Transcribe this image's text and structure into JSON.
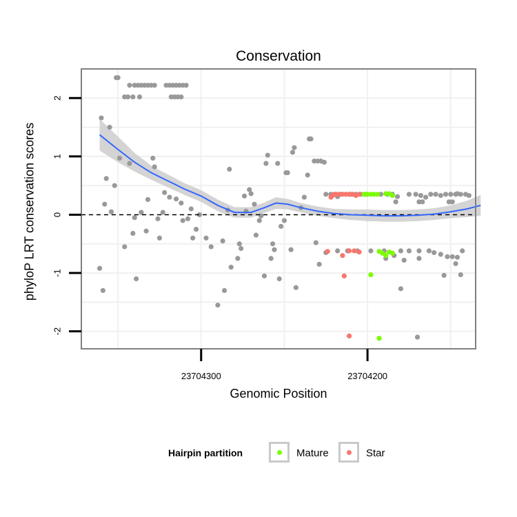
{
  "colors": {
    "other": "#999999",
    "mature": "#7cfc00",
    "star": "#f8766d",
    "smooth": "#3366ff",
    "ribbon": "#cccccc"
  },
  "legend": {
    "title": "Hairpin partition",
    "items": [
      {
        "label": "Mature",
        "color": "#7cfc00"
      },
      {
        "label": "Star",
        "color": "#f8766d"
      }
    ]
  },
  "chart_data": {
    "type": "scatter",
    "title": "Conservation",
    "xlabel": "Genomic Position",
    "ylabel": "phyloP LRT conservation scores",
    "xlim": [
      23704372,
      23704135
    ],
    "ylim": [
      -2.3,
      2.5
    ],
    "x_ticks": [
      23704300,
      23704200
    ],
    "x_tick_labels": [
      "23704300",
      "23704200"
    ],
    "y_ticks": [
      -2,
      -1,
      0,
      1,
      2
    ],
    "y_tick_labels": [
      "-2",
      "-1",
      "0",
      "1",
      "2"
    ],
    "reference_line": {
      "y": 0,
      "style": "dashed"
    },
    "series": [
      {
        "name": "Other",
        "points": [
          [
            23704360,
            1.66
          ],
          [
            23704355,
            1.5
          ],
          [
            23704352,
            0.5
          ],
          [
            23704354,
            0.05
          ],
          [
            23704358,
            0.18
          ],
          [
            23704357,
            0.62
          ],
          [
            23704349,
            0.97
          ],
          [
            23704361,
            -0.92
          ],
          [
            23704359,
            -1.3
          ],
          [
            23704350,
            2.35
          ],
          [
            23704351,
            2.35
          ],
          [
            23704346,
            2.02
          ],
          [
            23704344,
            2.02
          ],
          [
            23704341,
            2.02
          ],
          [
            23704343,
            2.22
          ],
          [
            23704340,
            2.22
          ],
          [
            23704338,
            2.22
          ],
          [
            23704336,
            2.22
          ],
          [
            23704334,
            2.22
          ],
          [
            23704332,
            2.22
          ],
          [
            23704330,
            2.22
          ],
          [
            23704328,
            2.22
          ],
          [
            23704337,
            2.02
          ],
          [
            23704321,
            2.22
          ],
          [
            23704319,
            2.22
          ],
          [
            23704317,
            2.22
          ],
          [
            23704315,
            2.22
          ],
          [
            23704313,
            2.22
          ],
          [
            23704311,
            2.22
          ],
          [
            23704309,
            2.22
          ],
          [
            23704318,
            2.02
          ],
          [
            23704316,
            2.02
          ],
          [
            23704314,
            2.02
          ],
          [
            23704312,
            2.02
          ],
          [
            23704346,
            -0.55
          ],
          [
            23704343,
            0.88
          ],
          [
            23704341,
            -0.32
          ],
          [
            23704340,
            -0.05
          ],
          [
            23704339,
            -1.1
          ],
          [
            23704336,
            0.04
          ],
          [
            23704333,
            -0.28
          ],
          [
            23704332,
            0.26
          ],
          [
            23704329,
            0.97
          ],
          [
            23704328,
            0.82
          ],
          [
            23704326,
            -0.07
          ],
          [
            23704325,
            -0.4
          ],
          [
            23704323,
            0.04
          ],
          [
            23704322,
            0.38
          ],
          [
            23704319,
            0.3
          ],
          [
            23704315,
            0.27
          ],
          [
            23704312,
            0.2
          ],
          [
            23704311,
            -0.1
          ],
          [
            23704308,
            -0.07
          ],
          [
            23704306,
            0.1
          ],
          [
            23704305,
            -0.4
          ],
          [
            23704303,
            -0.25
          ],
          [
            23704301,
            0.0
          ],
          [
            23704297,
            -0.4
          ],
          [
            23704294,
            -0.55
          ],
          [
            23704290,
            -1.55
          ],
          [
            23704287,
            -0.45
          ],
          [
            23704286,
            -1.3
          ],
          [
            23704284,
            0.08
          ],
          [
            23704283,
            0.78
          ],
          [
            23704282,
            -0.9
          ],
          [
            23704278,
            -0.75
          ],
          [
            23704277,
            -0.5
          ],
          [
            23704276,
            -0.58
          ],
          [
            23704274,
            0.32
          ],
          [
            23704273,
            0.06
          ],
          [
            23704271,
            0.43
          ],
          [
            23704270,
            0.36
          ],
          [
            23704268,
            0.18
          ],
          [
            23704267,
            -0.35
          ],
          [
            23704265,
            -0.1
          ],
          [
            23704264,
            -0.02
          ],
          [
            23704262,
            -1.05
          ],
          [
            23704261,
            0.88
          ],
          [
            23704260,
            1.02
          ],
          [
            23704258,
            -0.75
          ],
          [
            23704257,
            -0.5
          ],
          [
            23704256,
            -0.6
          ],
          [
            23704254,
            0.88
          ],
          [
            23704253,
            -1.1
          ],
          [
            23704252,
            -0.2
          ],
          [
            23704250,
            -0.1
          ],
          [
            23704249,
            0.72
          ],
          [
            23704248,
            0.72
          ],
          [
            23704246,
            -0.6
          ],
          [
            23704245,
            1.07
          ],
          [
            23704244,
            1.15
          ],
          [
            23704243,
            -1.25
          ],
          [
            23704240,
            0.12
          ],
          [
            23704238,
            0.3
          ],
          [
            23704236,
            0.68
          ],
          [
            23704235,
            1.3
          ],
          [
            23704234,
            1.3
          ],
          [
            23704232,
            0.92
          ],
          [
            23704230,
            0.92
          ],
          [
            23704228,
            0.92
          ],
          [
            23704226,
            0.9
          ],
          [
            23704231,
            -0.48
          ],
          [
            23704229,
            -0.85
          ],
          [
            23704225,
            -0.65
          ],
          [
            23704225,
            0.35
          ],
          [
            23704222,
            0.35
          ],
          [
            23704219,
            0.35
          ],
          [
            23704216,
            0.35
          ],
          [
            23704213,
            0.35
          ],
          [
            23704210,
            0.35
          ],
          [
            23704207,
            0.35
          ],
          [
            23704204,
            0.35
          ],
          [
            23704201,
            0.35
          ],
          [
            23704221,
            0.33
          ],
          [
            23704218,
            0.31
          ],
          [
            23704192,
            0.35
          ],
          [
            23704188,
            0.35
          ],
          [
            23704185,
            0.33
          ],
          [
            23704182,
            0.31
          ],
          [
            23704175,
            0.35
          ],
          [
            23704171,
            0.35
          ],
          [
            23704168,
            0.33
          ],
          [
            23704165,
            0.3
          ],
          [
            23704162,
            0.35
          ],
          [
            23704159,
            0.35
          ],
          [
            23704156,
            0.33
          ],
          [
            23704153,
            0.35
          ],
          [
            23704150,
            0.35
          ],
          [
            23704147,
            0.35
          ],
          [
            23704144,
            0.35
          ],
          [
            23704141,
            0.35
          ],
          [
            23704139,
            0.33
          ],
          [
            23704209,
            0.35
          ],
          [
            23704146,
            0.36
          ],
          [
            23704218,
            -0.62
          ],
          [
            23704212,
            -0.62
          ],
          [
            23704206,
            -0.62
          ],
          [
            23704198,
            -0.62
          ],
          [
            23704190,
            -0.62
          ],
          [
            23704180,
            -0.62
          ],
          [
            23704175,
            -0.62
          ],
          [
            23704169,
            -0.62
          ],
          [
            23704163,
            -0.62
          ],
          [
            23704160,
            -0.65
          ],
          [
            23704156,
            -0.68
          ],
          [
            23704152,
            -0.72
          ],
          [
            23704149,
            -0.72
          ],
          [
            23704146,
            -0.73
          ],
          [
            23704143,
            -0.62
          ],
          [
            23704189,
            -0.75
          ],
          [
            23704184,
            -0.7
          ],
          [
            23704178,
            -0.78
          ],
          [
            23704180,
            -1.27
          ],
          [
            23704169,
            -0.75
          ],
          [
            23704154,
            -1.04
          ],
          [
            23704147,
            -0.84
          ],
          [
            23704144,
            -1.03
          ],
          [
            23704170,
            -2.1
          ],
          [
            23704183,
            0.22
          ],
          [
            23704185,
            0.35
          ],
          [
            23704167,
            0.22
          ],
          [
            23704169,
            0.22
          ],
          [
            23704151,
            0.22
          ],
          [
            23704149,
            0.22
          ]
        ]
      },
      {
        "name": "Mature",
        "points": [
          [
            23704202,
            0.35
          ],
          [
            23704200,
            0.35
          ],
          [
            23704198,
            0.35
          ],
          [
            23704196,
            0.35
          ],
          [
            23704194,
            0.35
          ],
          [
            23704189,
            0.36
          ],
          [
            23704187,
            0.36
          ],
          [
            23704185,
            0.33
          ],
          [
            23704193,
            -0.63
          ],
          [
            23704191,
            -0.66
          ],
          [
            23704189,
            -0.7
          ],
          [
            23704187,
            -0.64
          ],
          [
            23704185,
            -0.66
          ],
          [
            23704198,
            -1.03
          ],
          [
            23704193,
            -2.12
          ]
        ]
      },
      {
        "name": "Star",
        "points": [
          [
            23704222,
            0.3
          ],
          [
            23704221,
            0.33
          ],
          [
            23704220,
            0.35
          ],
          [
            23704219,
            0.35
          ],
          [
            23704217,
            0.35
          ],
          [
            23704215,
            0.35
          ],
          [
            23704213,
            0.35
          ],
          [
            23704211,
            0.35
          ],
          [
            23704209,
            0.35
          ],
          [
            23704207,
            0.33
          ],
          [
            23704205,
            0.35
          ],
          [
            23704224,
            -0.63
          ],
          [
            23704215,
            -0.7
          ],
          [
            23704211,
            -0.62
          ],
          [
            23704208,
            -0.62
          ],
          [
            23704205,
            -0.64
          ],
          [
            23704214,
            -1.05
          ],
          [
            23704211,
            -2.08
          ]
        ]
      }
    ],
    "smooth": [
      [
        23704361,
        1.37
      ],
      [
        23704350,
        1.12
      ],
      [
        23704340,
        0.9
      ],
      [
        23704330,
        0.72
      ],
      [
        23704320,
        0.58
      ],
      [
        23704310,
        0.44
      ],
      [
        23704300,
        0.32
      ],
      [
        23704290,
        0.16
      ],
      [
        23704280,
        0.04
      ],
      [
        23704270,
        0.04
      ],
      [
        23704262,
        0.12
      ],
      [
        23704255,
        0.2
      ],
      [
        23704248,
        0.18
      ],
      [
        23704240,
        0.12
      ],
      [
        23704230,
        0.06
      ],
      [
        23704220,
        0.02
      ],
      [
        23704210,
        0.0
      ],
      [
        23704200,
        -0.01
      ],
      [
        23704190,
        -0.02
      ],
      [
        23704180,
        -0.02
      ],
      [
        23704170,
        -0.01
      ],
      [
        23704160,
        0.01
      ],
      [
        23704150,
        0.05
      ],
      [
        23704140,
        0.1
      ],
      [
        23704132,
        0.16
      ]
    ],
    "ribbon_halfwidth": [
      [
        23704361,
        0.27
      ],
      [
        23704350,
        0.22
      ],
      [
        23704340,
        0.16
      ],
      [
        23704330,
        0.12
      ],
      [
        23704320,
        0.11
      ],
      [
        23704310,
        0.1
      ],
      [
        23704300,
        0.1
      ],
      [
        23704290,
        0.1
      ],
      [
        23704280,
        0.09
      ],
      [
        23704270,
        0.09
      ],
      [
        23704262,
        0.09
      ],
      [
        23704255,
        0.1
      ],
      [
        23704248,
        0.09
      ],
      [
        23704240,
        0.08
      ],
      [
        23704230,
        0.08
      ],
      [
        23704220,
        0.08
      ],
      [
        23704210,
        0.09
      ],
      [
        23704200,
        0.1
      ],
      [
        23704190,
        0.1
      ],
      [
        23704180,
        0.1
      ],
      [
        23704170,
        0.1
      ],
      [
        23704160,
        0.1
      ],
      [
        23704150,
        0.11
      ],
      [
        23704140,
        0.14
      ],
      [
        23704132,
        0.18
      ]
    ]
  }
}
